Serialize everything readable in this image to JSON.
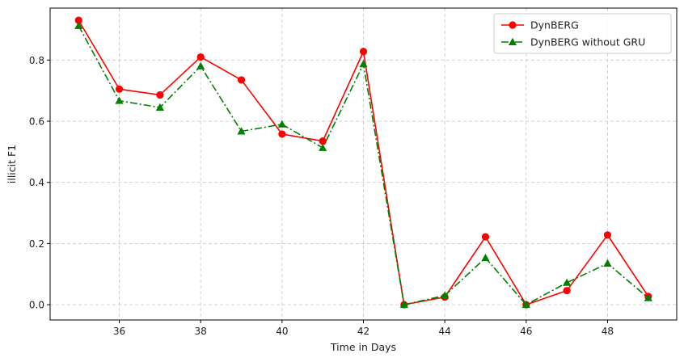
{
  "chart_data": {
    "type": "line",
    "xlabel": "Time in Days",
    "ylabel": "illicit F1",
    "xlim": [
      34.3,
      49.7
    ],
    "ylim": [
      -0.05,
      0.97
    ],
    "xticks": [
      36,
      38,
      40,
      42,
      44,
      46,
      48
    ],
    "yticks": [
      0.0,
      0.2,
      0.4,
      0.6,
      0.8
    ],
    "grid": true,
    "legend_position": "top-right",
    "x": [
      35,
      36,
      37,
      38,
      39,
      40,
      41,
      42,
      43,
      44,
      45,
      46,
      47,
      48,
      49
    ],
    "series": [
      {
        "name": "DynBERG",
        "color": "#ff0000",
        "line_style": "solid",
        "marker": "circle",
        "values": [
          0.93,
          0.705,
          0.686,
          0.81,
          0.735,
          0.558,
          0.535,
          0.828,
          0.0,
          0.025,
          0.222,
          0.0,
          0.046,
          0.228,
          0.027
        ]
      },
      {
        "name": "DynBERG without GRU",
        "color": "#008000",
        "line_style": "dashdot",
        "marker": "triangle",
        "values": [
          0.912,
          0.667,
          0.645,
          0.78,
          0.567,
          0.59,
          0.513,
          0.787,
          0.0,
          0.03,
          0.153,
          0.0,
          0.072,
          0.135,
          0.022
        ]
      }
    ]
  }
}
